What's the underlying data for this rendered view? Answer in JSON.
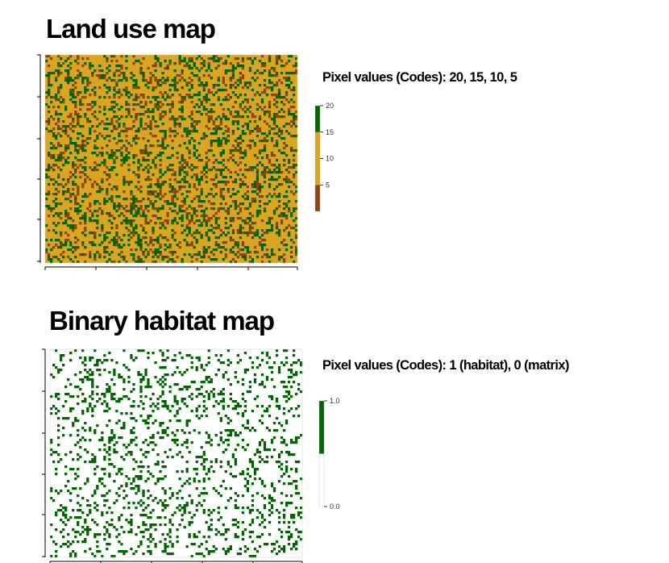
{
  "maps": [
    {
      "title": "Land use map",
      "codes_label": "Pixel values (Codes): 20, 15, 10, 5",
      "legend": {
        "min": 0,
        "max": 20,
        "ticks": [
          "20",
          "15",
          "10",
          "5"
        ],
        "tick_values": [
          20,
          15,
          10,
          5
        ],
        "bands": [
          {
            "from": 0,
            "to": 5,
            "color": "#8b4513"
          },
          {
            "from": 5,
            "to": 15,
            "color": "#daa520"
          },
          {
            "from": 15,
            "to": 20,
            "color": "#006400"
          }
        ]
      },
      "pixel_classes": [
        {
          "code": 5,
          "color": "#8b4513",
          "fraction": 0.12
        },
        {
          "code": 10,
          "color": "#daa520",
          "fraction": 0.7
        },
        {
          "code": 20,
          "color": "#006400",
          "fraction": 0.18
        }
      ]
    },
    {
      "title": "Binary habitat map",
      "codes_label": "Pixel values (Codes): 1 (habitat), 0 (matrix)",
      "legend": {
        "min": 0,
        "max": 1,
        "ticks": [
          "1.0",
          "0.0"
        ],
        "tick_values": [
          1.0,
          0.0
        ],
        "bands": [
          {
            "from": 0,
            "to": 0.5,
            "color": "#ffffff"
          },
          {
            "from": 0.5,
            "to": 1,
            "color": "#006400"
          }
        ]
      },
      "pixel_classes": [
        {
          "code": 0,
          "color": "#ffffff",
          "fraction": 0.82
        },
        {
          "code": 1,
          "color": "#006400",
          "fraction": 0.18
        }
      ]
    }
  ]
}
